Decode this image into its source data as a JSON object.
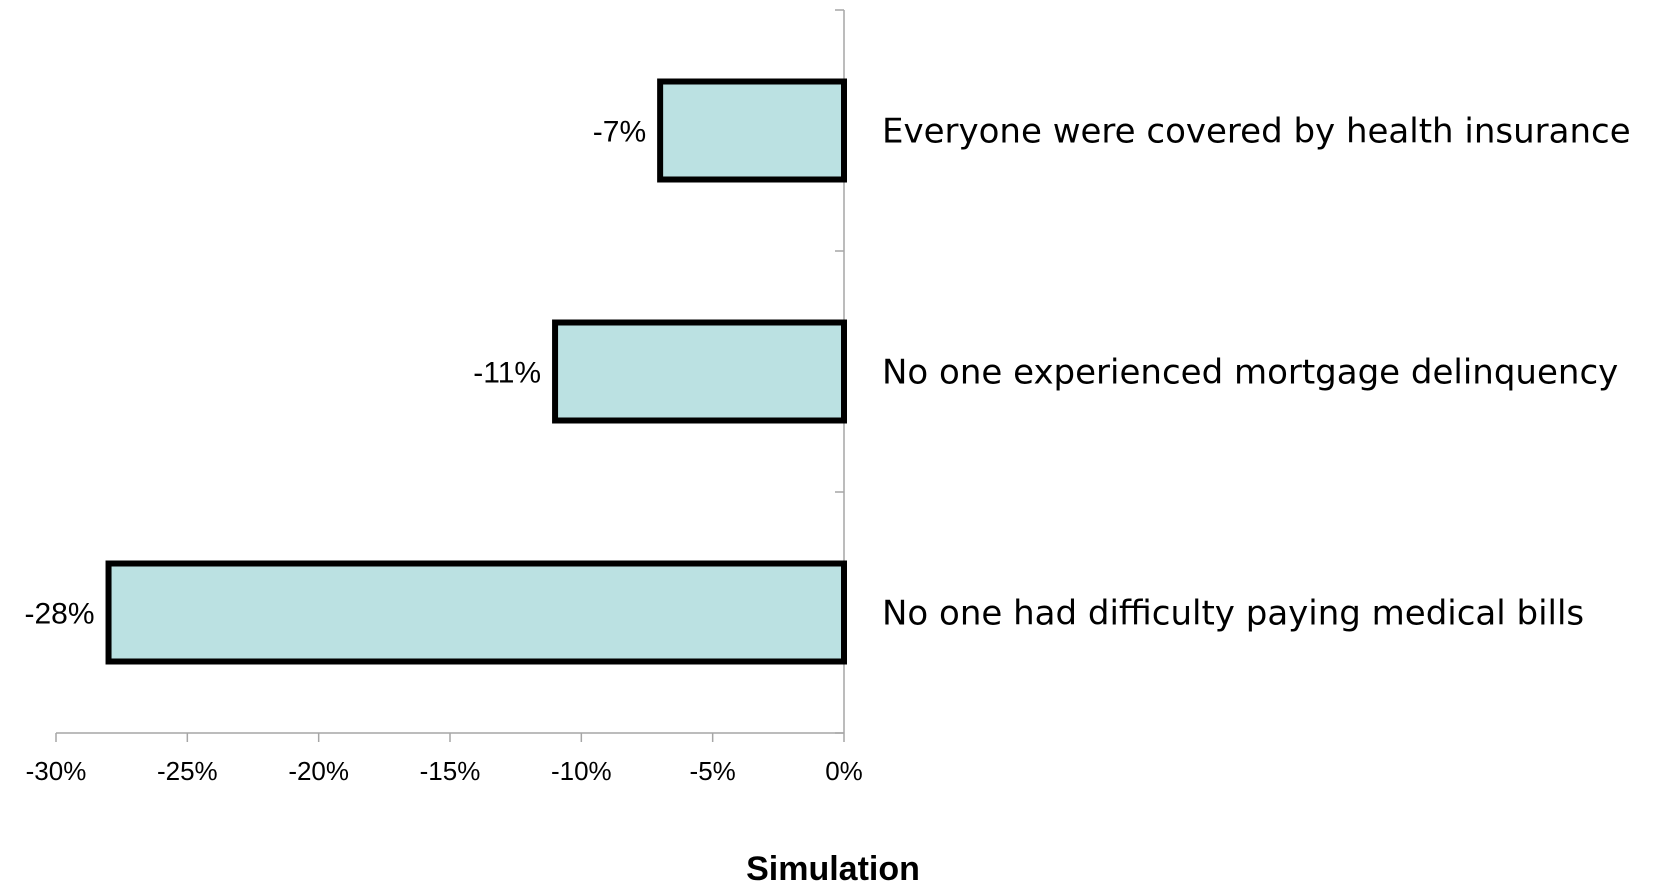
{
  "chart_data": {
    "type": "bar",
    "orientation": "horizontal",
    "categories": [
      "Everyone were covered by health insurance",
      "No one experienced mortgage delinquency",
      "No one had difficulty paying medical bills"
    ],
    "values": [
      -7,
      -11,
      -28
    ],
    "data_labels": [
      "-7%",
      "-11%",
      "-28%"
    ],
    "title": "",
    "xlabel": "Simulation",
    "ylabel": "",
    "xlim": [
      -30,
      0
    ],
    "x_ticks": [
      -30,
      -25,
      -20,
      -15,
      -10,
      -5,
      0
    ],
    "x_tick_labels": [
      "-30%",
      "-25%",
      "-20%",
      "-15%",
      "-10%",
      "-5%",
      "0%"
    ],
    "grid": false,
    "legend": "none",
    "bar_fill": "#bbe1e2",
    "bar_outline": "#000000",
    "axis_color": "#a6a6a6"
  }
}
